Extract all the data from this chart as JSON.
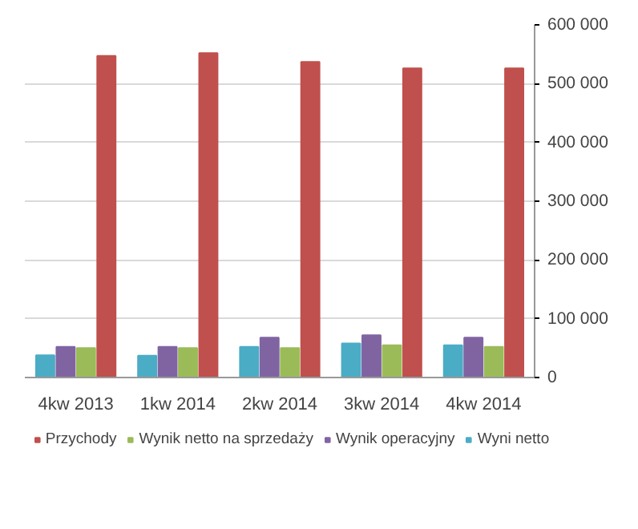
{
  "chart_data": {
    "type": "bar",
    "categories": [
      "4kw 2013",
      "1kw 2014",
      "2kw 2014",
      "3kw 2014",
      "4kw 2014"
    ],
    "series": [
      {
        "name": "Przychody",
        "color": "#c0504d",
        "values": [
          547000,
          552000,
          537000,
          526000,
          526000
        ]
      },
      {
        "name": "Wynik netto na sprzedaży",
        "color": "#9bbb59",
        "values": [
          50000,
          50000,
          50000,
          55000,
          52000
        ]
      },
      {
        "name": "Wynik operacyjny",
        "color": "#8064a2",
        "values": [
          52000,
          52000,
          68000,
          72000,
          68000
        ]
      },
      {
        "name": "Wyni netto",
        "color": "#4bacc6",
        "values": [
          38000,
          37000,
          52000,
          58000,
          55000
        ]
      }
    ],
    "ylim": [
      0,
      600000
    ],
    "yticks": [
      {
        "value": 0,
        "label": "0"
      },
      {
        "value": 100000,
        "label": "100 000"
      },
      {
        "value": 200000,
        "label": "200 000"
      },
      {
        "value": 300000,
        "label": "300 000"
      },
      {
        "value": 400000,
        "label": "400 000"
      },
      {
        "value": 500000,
        "label": "500 000"
      },
      {
        "value": 600000,
        "label": "600 000"
      }
    ],
    "grid": "y",
    "legend": "bottom"
  }
}
